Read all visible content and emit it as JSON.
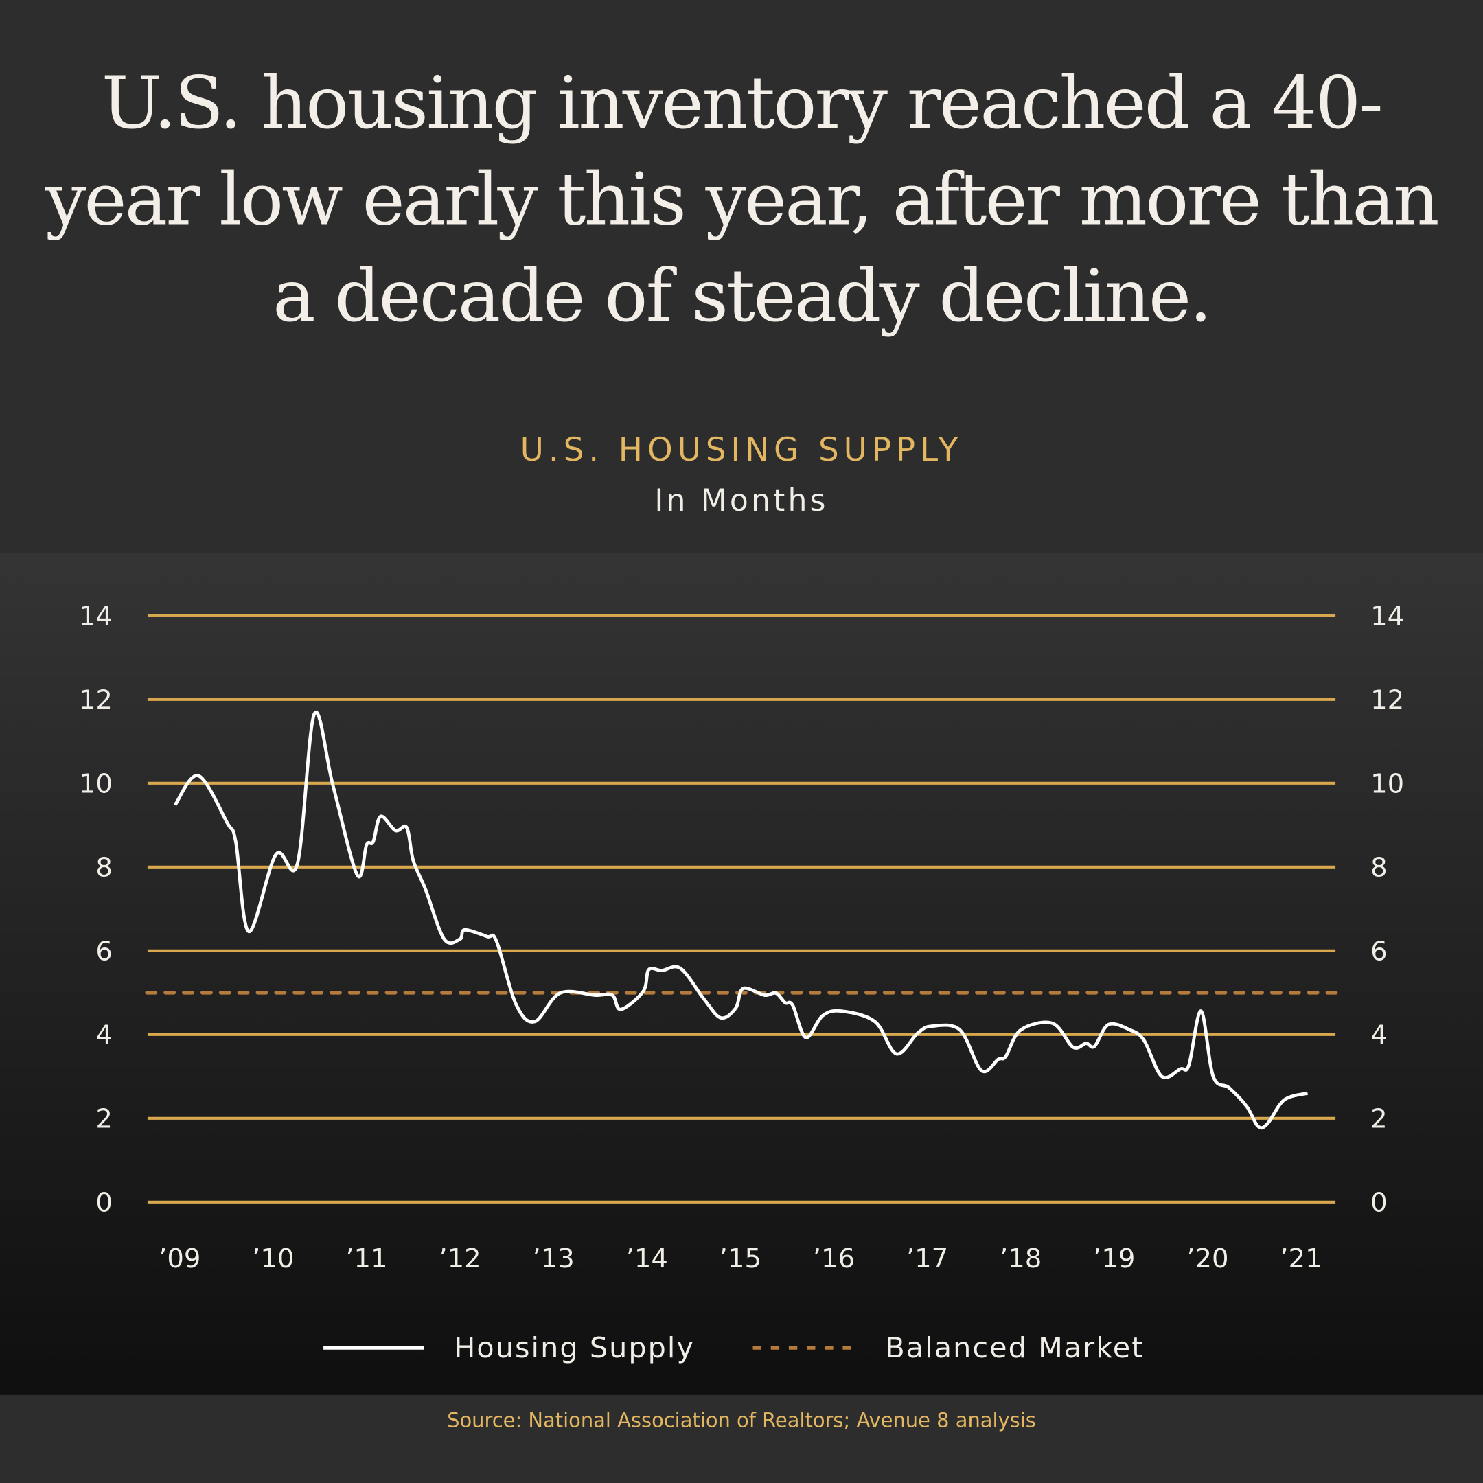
{
  "headline": "U.S. housing inventory reached a 40-year low early this year, after more than a decade of steady decline.",
  "source": "Source: National Association of Realtors; Avenue 8 analysis",
  "colors": {
    "gridline": "#d9a84e",
    "balanced": "#b57b3c",
    "line": "#ffffff",
    "accent_text": "#e3b661"
  },
  "chart_data": {
    "type": "line",
    "title": "U.S. HOUSING SUPPLY",
    "subtitle": "In Months",
    "ylim": [
      0,
      14
    ],
    "yticks": [
      "0",
      "2",
      "4",
      "6",
      "8",
      "10",
      "12",
      "14"
    ],
    "yticks_both_sides": true,
    "xticks": [
      "’09",
      "’10",
      "’11",
      "’12",
      "’13",
      "’14",
      "’15",
      "’16",
      "’17",
      "’18",
      "’19",
      "’20",
      "’21"
    ],
    "grid": true,
    "legend_position": "bottom",
    "series": [
      {
        "name": "Housing Supply",
        "style": "solid",
        "x": [
          2008.95,
          2009.2,
          2009.51,
          2009.6,
          2009.74,
          2010.03,
          2010.26,
          2010.44,
          2010.64,
          2010.9,
          2011.0,
          2011.07,
          2011.15,
          2011.31,
          2011.43,
          2011.5,
          2011.63,
          2011.83,
          2012.0,
          2012.05,
          2012.29,
          2012.39,
          2012.6,
          2012.8,
          2013.07,
          2013.45,
          2013.63,
          2013.72,
          2013.96,
          2014.02,
          2014.16,
          2014.36,
          2014.61,
          2014.79,
          2014.95,
          2015.03,
          2015.26,
          2015.38,
          2015.48,
          2015.56,
          2015.7,
          2015.88,
          2016.08,
          2016.44,
          2016.67,
          2016.9,
          2017.05,
          2017.35,
          2017.58,
          2017.76,
          2017.84,
          2018.0,
          2018.34,
          2018.56,
          2018.7,
          2018.79,
          2018.94,
          2019.17,
          2019.32,
          2019.51,
          2019.71,
          2019.8,
          2019.93,
          2020.06,
          2020.23,
          2020.42,
          2020.54,
          2020.64,
          2020.82,
          2021.07
        ],
        "y": [
          9.48,
          10.18,
          9.05,
          8.6,
          6.46,
          8.3,
          8.08,
          11.65,
          9.95,
          7.81,
          8.53,
          8.6,
          9.21,
          8.87,
          8.94,
          8.15,
          7.47,
          6.28,
          6.28,
          6.5,
          6.34,
          6.23,
          4.72,
          4.31,
          4.99,
          4.94,
          4.94,
          4.6,
          5.03,
          5.55,
          5.53,
          5.58,
          4.85,
          4.4,
          4.63,
          5.1,
          4.94,
          4.99,
          4.76,
          4.7,
          3.93,
          4.45,
          4.56,
          4.31,
          3.54,
          4.04,
          4.2,
          4.11,
          3.14,
          3.41,
          3.48,
          4.11,
          4.27,
          3.7,
          3.79,
          3.72,
          4.24,
          4.11,
          3.86,
          3.0,
          3.18,
          3.27,
          4.56,
          3.0,
          2.73,
          2.28,
          1.81,
          1.87,
          2.44,
          2.6
        ]
      },
      {
        "name": "Balanced Market",
        "style": "dashed",
        "x": [
          2008.65,
          2021.4
        ],
        "y": [
          5,
          5
        ]
      }
    ]
  }
}
